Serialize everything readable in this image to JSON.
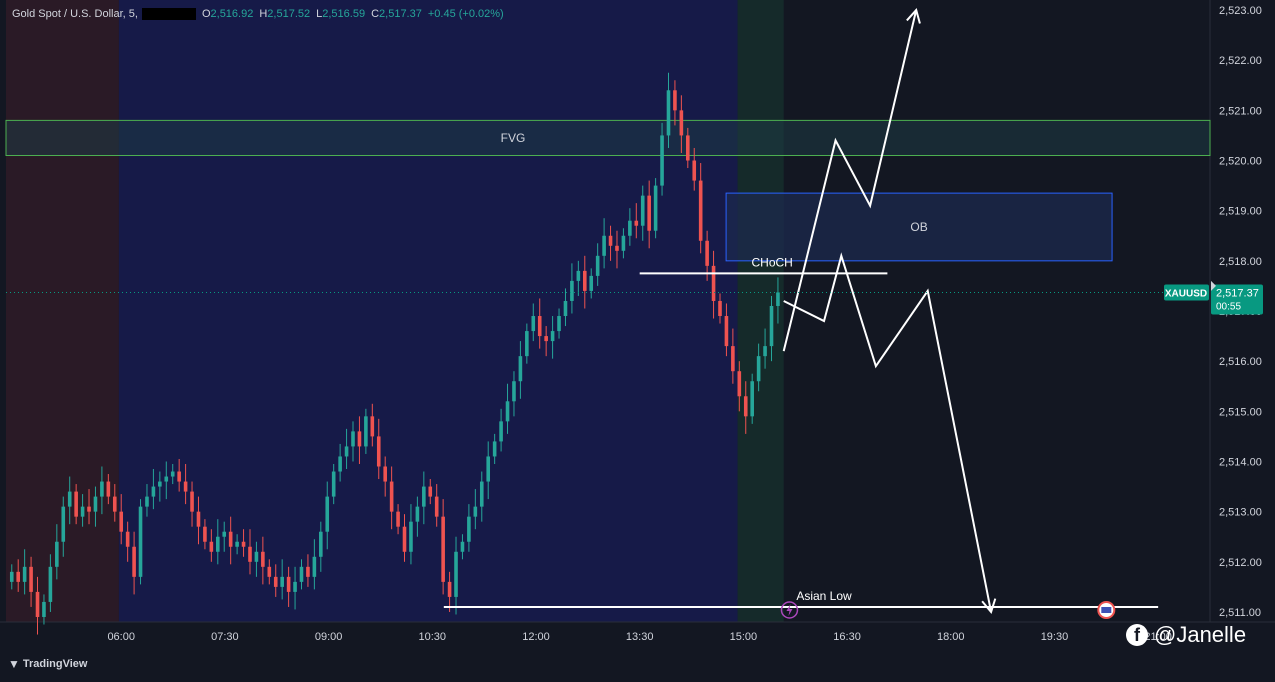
{
  "header": {
    "symbol": "Gold Spot / U.S. Dollar, 5,",
    "o_label": "O",
    "o": "2,516.92",
    "h_label": "H",
    "h": "2,517.52",
    "l_label": "L",
    "l": "2,516.59",
    "c_label": "C",
    "c": "2,517.37",
    "change": "+0.45 (+0.02%)"
  },
  "colors": {
    "background": "#131722",
    "up": "#26a69a",
    "down": "#ef5350",
    "session_red": "#2a1a26",
    "session_blue": "#161a48",
    "session_green": "#152a2a",
    "fvg_fill": "#1d3a44",
    "fvg_border": "#4caf50",
    "ob_fill": "#1c2a4e",
    "ob_border": "#2962ff",
    "badge": "#089981"
  },
  "chart_data": {
    "type": "candlestick",
    "title": "Gold Spot / U.S. Dollar, 5",
    "xlabel": "",
    "ylabel": "",
    "x_ticks": [
      "06:00",
      "07:30",
      "09:00",
      "10:30",
      "12:00",
      "13:30",
      "15:00",
      "16:30",
      "18:00",
      "19:30",
      "21:00"
    ],
    "y_ticks": [
      "2,511.00",
      "2,512.00",
      "2,513.00",
      "2,514.00",
      "2,515.00",
      "2,516.00",
      "2,517.00",
      "2,518.00",
      "2,519.00",
      "2,520.00",
      "2,521.00",
      "2,522.00",
      "2,523.00"
    ],
    "ylim": [
      2510.8,
      2523.2
    ],
    "xlim": [
      "04:20",
      "21:45"
    ],
    "grid": false,
    "last_price": {
      "symbol": "XAUUSD",
      "value": "2,517.37",
      "countdown": "00:55"
    },
    "candle_closes": [
      2511.8,
      2511.6,
      2511.9,
      2511.4,
      2510.9,
      2511.2,
      2511.9,
      2512.4,
      2513.1,
      2513.4,
      2512.9,
      2513.1,
      2513.0,
      2513.3,
      2513.6,
      2513.3,
      2513.0,
      2512.6,
      2512.3,
      2511.7,
      2513.1,
      2513.3,
      2513.5,
      2513.6,
      2513.7,
      2513.8,
      2513.6,
      2513.4,
      2513.0,
      2512.7,
      2512.4,
      2512.2,
      2512.5,
      2512.6,
      2512.3,
      2512.4,
      2512.3,
      2512.0,
      2512.2,
      2511.9,
      2511.7,
      2511.5,
      2511.7,
      2511.4,
      2511.6,
      2511.9,
      2511.7,
      2512.1,
      2512.6,
      2513.3,
      2513.8,
      2514.1,
      2514.3,
      2514.6,
      2514.3,
      2514.9,
      2514.5,
      2513.9,
      2513.6,
      2513.0,
      2512.7,
      2512.2,
      2512.8,
      2513.1,
      2513.5,
      2513.3,
      2512.9,
      2511.6,
      2511.3,
      2512.2,
      2512.4,
      2512.9,
      2513.1,
      2513.6,
      2514.1,
      2514.4,
      2514.8,
      2515.2,
      2515.6,
      2516.1,
      2516.6,
      2516.9,
      2516.5,
      2516.4,
      2516.6,
      2516.9,
      2517.2,
      2517.6,
      2517.8,
      2517.4,
      2517.7,
      2518.1,
      2518.5,
      2518.3,
      2518.2,
      2518.5,
      2518.8,
      2518.7,
      2519.3,
      2518.6,
      2519.5,
      2520.5,
      2521.4,
      2521.0,
      2520.5,
      2520.0,
      2519.6,
      2518.4,
      2517.9,
      2517.2,
      2516.9,
      2516.3,
      2515.8,
      2515.3,
      2514.9,
      2515.6,
      2516.1,
      2516.3,
      2517.1,
      2517.37
    ],
    "zones": [
      {
        "label": "FVG",
        "price_from": 2520.1,
        "price_to": 2520.8
      },
      {
        "label": "OB",
        "price_from": 2518.0,
        "price_to": 2519.35
      }
    ],
    "levels": [
      {
        "label": "CHoCH",
        "price": 2517.75
      },
      {
        "label": "Asian Low",
        "price": 2511.1
      }
    ],
    "projection_path": [
      {
        "time": "15:35",
        "price": 2516.2
      },
      {
        "time": "16:20",
        "price": 2520.4
      },
      {
        "time": "16:50",
        "price": 2519.1
      },
      {
        "time": "17:30",
        "price": 2523.0
      }
    ],
    "projection_path_2": [
      {
        "time": "15:35",
        "price": 2517.2
      },
      {
        "time": "16:10",
        "price": 2516.8
      },
      {
        "time": "16:25",
        "price": 2518.1
      },
      {
        "time": "16:55",
        "price": 2515.9
      },
      {
        "time": "17:40",
        "price": 2517.4
      },
      {
        "time": "18:35",
        "price": 2511.0
      }
    ]
  },
  "watermark": {
    "handle": "@Janelle",
    "icon": "facebook-icon"
  },
  "brand": {
    "name": "TradingView",
    "icon": "tradingview-icon"
  }
}
